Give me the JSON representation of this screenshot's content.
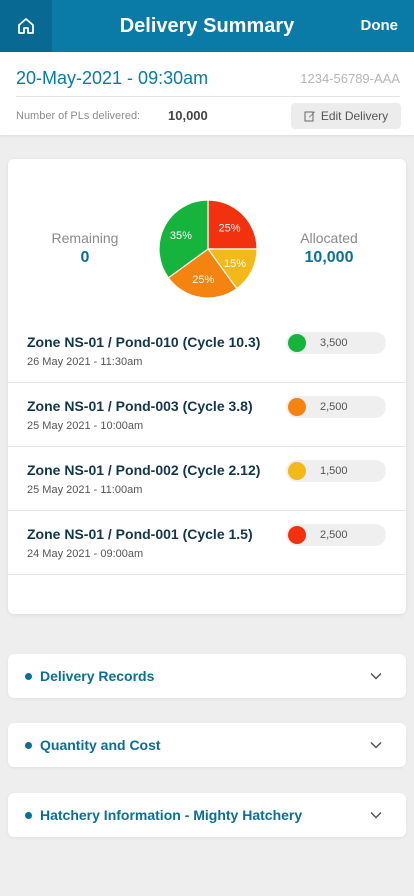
{
  "header": {
    "title": "Delivery Summary",
    "done_label": "Done"
  },
  "info": {
    "datetime": "20-May-2021 -  09:30am",
    "reference": "1234-56789-AAA",
    "pl_label": "Number of PLs delivered:",
    "pl_value": "10,000",
    "edit_label": "Edit Delivery"
  },
  "summary": {
    "remaining_label": "Remaining",
    "remaining_value": "0",
    "allocated_label": "Allocated",
    "allocated_value": "10,000"
  },
  "chart_data": {
    "type": "pie",
    "slices": [
      {
        "label": "25%",
        "value": 25,
        "color": "#f2310e"
      },
      {
        "label": "15%",
        "value": 15,
        "color": "#f4b818"
      },
      {
        "label": "25%",
        "value": 25,
        "color": "#f4830f"
      },
      {
        "label": "35%",
        "value": 35,
        "color": "#17b43d"
      }
    ]
  },
  "zones": [
    {
      "title": "Zone NS-01 / Pond-010 (Cycle 10.3)",
      "date": "26 May 2021 - 11:30am",
      "quantity": "3,500",
      "color": "#17b43d"
    },
    {
      "title": "Zone NS-01 / Pond-003 (Cycle 3.8)",
      "date": "25 May 2021 - 10:00am",
      "quantity": "2,500",
      "color": "#f4830f"
    },
    {
      "title": "Zone NS-01 / Pond-002 (Cycle 2.12)",
      "date": "25 May 2021 - 11:00am",
      "quantity": "1,500",
      "color": "#f4b818"
    },
    {
      "title": "Zone NS-01 / Pond-001 (Cycle 1.5)",
      "date": "24 May 2021 - 09:00am",
      "quantity": "2,500",
      "color": "#f2310e"
    }
  ],
  "sections": [
    {
      "label": "Delivery Records"
    },
    {
      "label": "Quantity and Cost"
    },
    {
      "label": "Hatchery Information - Mighty Hatchery"
    }
  ],
  "colors": {
    "primary": "#0a7aa6",
    "primary_dark": "#086a93"
  }
}
